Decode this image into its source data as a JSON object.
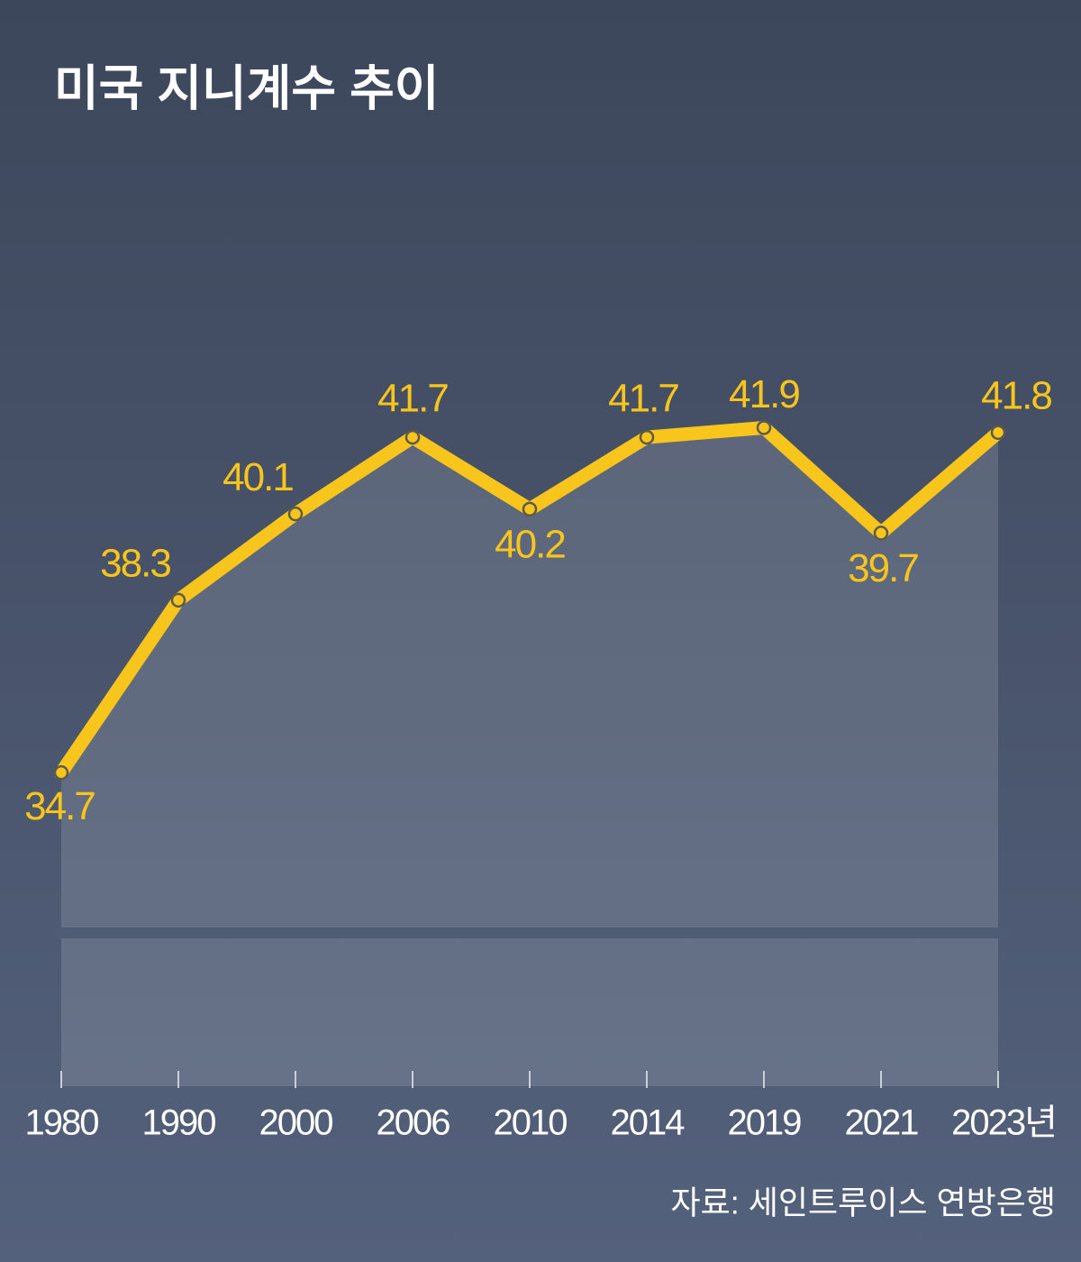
{
  "chart_data": {
    "type": "line",
    "title": "미국 지니계수 추이",
    "source": "자료: 세인트루이스 연방은행",
    "categories": [
      "1980",
      "1990",
      "2000",
      "2006",
      "2010",
      "2014",
      "2019",
      "2021",
      "2023년"
    ],
    "values": [
      34.7,
      38.3,
      40.1,
      41.7,
      40.2,
      41.7,
      41.9,
      39.7,
      41.8
    ],
    "color": "#f8c51c",
    "ylim": [
      30,
      43
    ]
  }
}
